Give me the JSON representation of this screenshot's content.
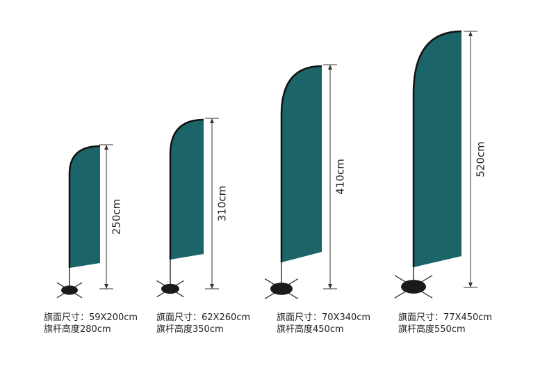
{
  "flags": [
    {
      "height": "250cm",
      "flag_size": "旗面尺寸：59X200cm",
      "pole_height": "旗杆高度280cm"
    },
    {
      "height": "310cm",
      "flag_size": "旗面尺寸：62X260cm",
      "pole_height": "旗杆高度350cm"
    },
    {
      "height": "410cm",
      "flag_size": "旗面尺寸：70X340cm",
      "pole_height": "旗杆高度450cm"
    },
    {
      "height": "520cm",
      "flag_size": "旗面尺寸：77X450cm",
      "pole_height": "旗杆高度550cm"
    }
  ]
}
